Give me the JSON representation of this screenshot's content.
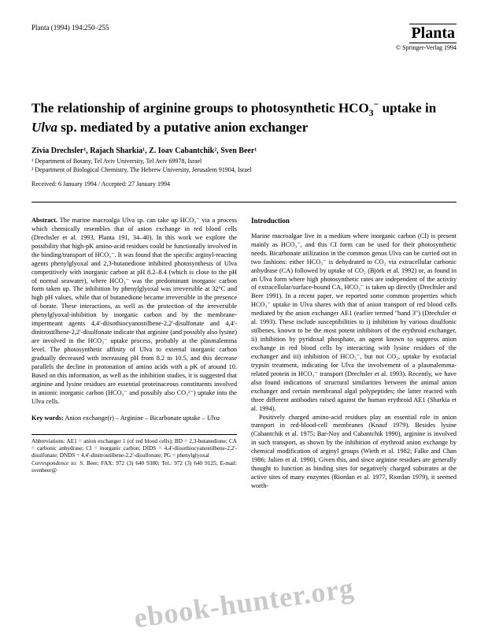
{
  "header": {
    "citation": "Planta (1994) 194:250–255",
    "journal_name": "Planta",
    "copyright": "© Springer-Verlag 1994"
  },
  "title": "The relationship of arginine groups to photosynthetic HCO₃⁻ uptake in Ulva sp. mediated by a putative anion exchanger",
  "authors": "Zivia Drechsler¹, Rajach Sharkia¹, Z. Ioav Cabantchik², Sven Beer¹",
  "affiliations": {
    "line1": "¹ Department of Botany, Tel Aviv University, Tel Aviv 69978, Israel",
    "line2": "² Department of Biological Chemistry, The Hebrew University, Jerusalem 91904, Israel"
  },
  "dates": "Received: 6 January 1994 / Accepted: 27 January 1994",
  "abstract": {
    "label": "Abstract.",
    "text": "The marine macroalga Ulva sp. can take up HCO₃⁻ via a process which chemically resembles that of anion exchange in red blood cells (Drechsler et al. 1993, Planta 191, 34–40). In this work we explore the possibility that high-pK amino-acid residues could be functionally involved in the binding/transport of HCO₃⁻. It was found that the specific arginyl-reacting agents phenylglyoxal and 2,3-butanedione inhibited photosynthesis of Ulva competitively with inorganic carbon at pH 8.2–8.4 (which is close to the pH of normal seawater), where HCO₃⁻ was the predominant inorganic carbon form taken up. The inhibition by phenylglyoxal was irreversible at 32°C and high pH values, while that of butanedione became irreversible in the presence of borate. These interactions, as well as the protection of the irreversible phenylglyoxal-inhibition by inorganic carbon and by the membrane-impermeant agents 4,4'-diisothiocyanostilbene-2,2'-disulfonate and 4,4'-dinitrostilbene-2,2'-disulfonate indicate that arginine (and possibly also lysine) are involved in the HCO₃⁻ uptake process, probably at the plasmalemma level. The photosynthetic affinity of Ulva to external inorganic carbon gradually decreased with increasing pH from 8.2 to 10.5, and this decrease parallels the decline in protonation of amino acids with a pK of around 10. Based on this information, as well as the inhibition studies, it is suggested that arginine and lysine residues are essential proteinaceous constituents involved in anionic inorganic carbon (HCO₃⁻ and possibly also CO₃²⁻) uptake into the Ulva cells."
  },
  "keywords": {
    "label": "Key words:",
    "text": "Anion exchange(r) – Arginine – Bicarbonate uptake – Ulva"
  },
  "introduction": {
    "heading": "Introduction",
    "text": "Marine macroalgae live in a medium where inorganic carbon (CI) is present mainly as HCO₃⁻, and this CI form can be used for their photosynthetic needs. Bicarbonate utilization in the common genus Ulva can be carried out in two fashions: either HCO₃⁻ is dehydrated to CO₂ via extracellular carbonic anhydrase (CA) followed by uptake of CO₂ (Björk et al. 1992) or, as found in an Ulva form where high photosynthetic rates are independent of the activity of extracellular/surface-bound CA, HCO₃⁻ is taken up directly (Drechsler and Beer 1991). In a recent paper, we reported some common properties which HCO₃⁻ uptake in Ulva shares with that of anion transport of red blood cells mediated by the anion exchanger AE1 (earlier termed \"band 3\") (Drechsler et al. 1993). These include susceptibilities to i) inhibition by various disulfonic stilbenes, known to be the most potent inhibitors of the erythroid exchanger, ii) inhibition by pyridoxal phosphate, an agent known to suppress anion exchange in red blood cells by interacting with lysine residues of the exchanger and iii) inhibition of HCO₃⁻, but not CO₂, uptake by exofacial trypsin treatment, indicating for Ulva the involvement of a plasmalemma-related protein in HCO₃⁻ transport (Drechsler et al. 1993). Recently, we have also found indications of structural similarities between the animal anion exchanger and certain membranal algal polypeptides; the latter reacted with three different antibodies raised against the human erythroid AE1 (Sharkia et al. 1994).",
    "text2": "Positively charged amino-acid residues play an essential role in anion transport in red-blood-cell membranes (Knauf 1979). Besides lysine (Cabantchik et al. 1975; Bar-Noy and Cabantchik 1990), arginine is involved in such transport, as shown by the inhibition of erythroid anion exchange by chemical modification of arginyl groups (Wieth et al. 1982; Falke and Chan 1986; Julien et al. 1990). Given this, and since arginine residues are generally thought to function as binding sites for negatively charged substrates at the active sites of many enzymes (Riordan et al. 1977, Riordan 1979), it seemed worth-"
  },
  "abbreviations": {
    "text": "Abbreviations: AE1 = anion exchanger 1 (of red blood cells); BD = 2,3-butanedione; CA = carbonic anhydrase; CI = inorganic carbon; DIDS = 4,4'-diisothiocyanostilbene-2,2'-disulfonate; DNDS = 4,4'-dinitrostilbene-2,2'-disulfonate; PG = phenylglyoxal"
  },
  "correspondence": {
    "label": "Correspondence to:",
    "text": "S. Beer; FAX: 972 (3) 640 9380; Tel.: 972 (3) 640 9125; E-mail: svenbeer@"
  },
  "watermark": "ebook-hunter.org"
}
